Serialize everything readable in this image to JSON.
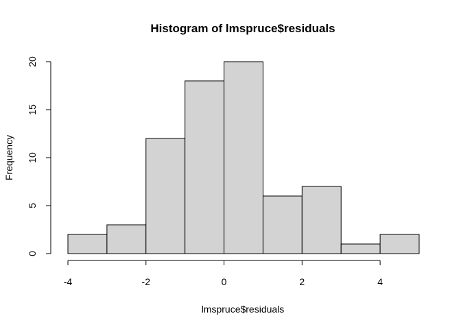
{
  "chart_data": {
    "type": "bar",
    "title": "Histogram of lmspruce$residuals",
    "xlabel": "lmspruce$residuals",
    "ylabel": "Frequency",
    "bins": [
      {
        "from": -4,
        "to": -3,
        "count": 2
      },
      {
        "from": -3,
        "to": -2,
        "count": 3
      },
      {
        "from": -2,
        "to": -1,
        "count": 12
      },
      {
        "from": -1,
        "to": 0,
        "count": 18
      },
      {
        "from": 0,
        "to": 1,
        "count": 20
      },
      {
        "from": 1,
        "to": 2,
        "count": 6
      },
      {
        "from": 2,
        "to": 3,
        "count": 7
      },
      {
        "from": 3,
        "to": 4,
        "count": 1
      },
      {
        "from": 4,
        "to": 5,
        "count": 2
      }
    ],
    "x_ticks": [
      -4,
      -2,
      0,
      2,
      4
    ],
    "y_ticks": [
      0,
      5,
      10,
      15,
      20
    ],
    "xlim": [
      -4,
      5
    ],
    "ylim": [
      0,
      20
    ],
    "grid": false,
    "bar_color": "#d3d3d3",
    "edge_color": "#000000"
  }
}
